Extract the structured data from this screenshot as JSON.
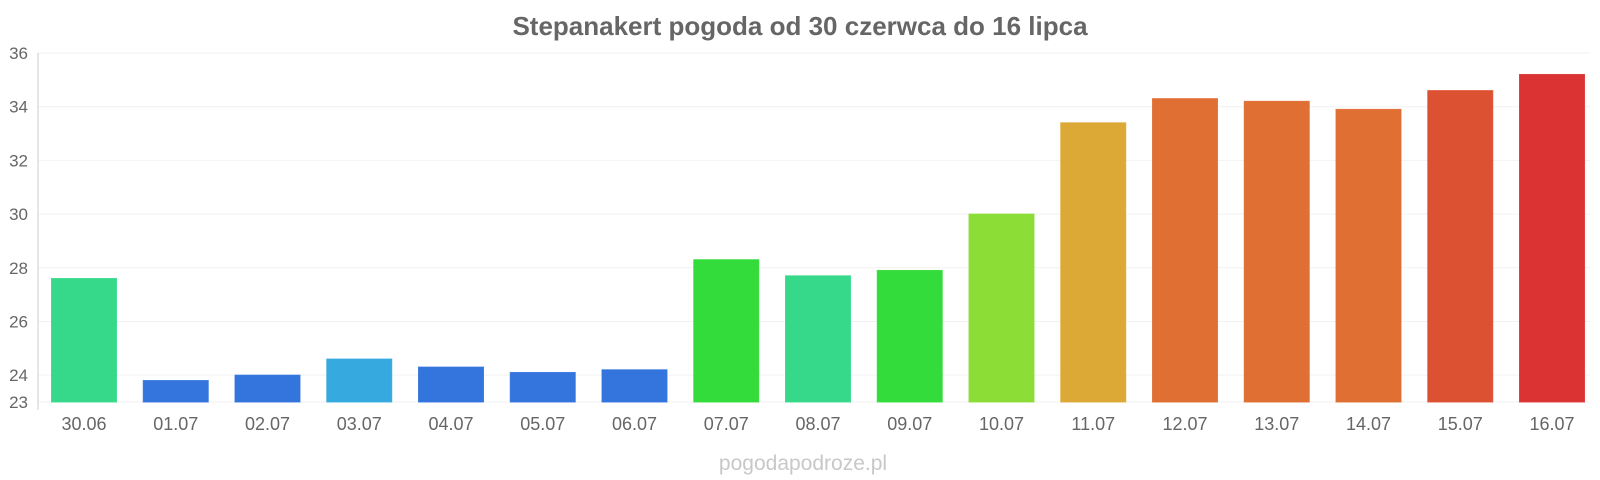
{
  "chart_data": {
    "type": "bar",
    "title": "Stepanakert pogoda od 30 czerwca do 16 lipca",
    "xlabel": "",
    "ylabel": "",
    "ylim": [
      23,
      36
    ],
    "yticks": [
      23,
      24,
      26,
      28,
      30,
      32,
      34,
      36
    ],
    "ytick_labels": [
      "23",
      "24",
      "26",
      "28",
      "30",
      "32",
      "34",
      "36"
    ],
    "grid": true,
    "categories": [
      "30.06",
      "01.07",
      "02.07",
      "03.07",
      "04.07",
      "05.07",
      "06.07",
      "07.07",
      "08.07",
      "09.07",
      "10.07",
      "11.07",
      "12.07",
      "13.07",
      "14.07",
      "15.07",
      "16.07"
    ],
    "values": [
      27.6,
      23.8,
      24.0,
      24.6,
      24.3,
      24.1,
      24.2,
      28.3,
      27.7,
      27.9,
      30.0,
      33.4,
      34.3,
      34.2,
      33.9,
      34.6,
      35.2
    ],
    "colors": [
      "#36d98a",
      "#3374dd",
      "#3374dd",
      "#36a9de",
      "#3374dd",
      "#3374dd",
      "#3374dd",
      "#33dc3a",
      "#36d98a",
      "#33dc3a",
      "#8cde36",
      "#dca836",
      "#df6f33",
      "#df6f33",
      "#df6f33",
      "#dd5133",
      "#db3333"
    ]
  },
  "watermark": "pogodapodroze.pl"
}
